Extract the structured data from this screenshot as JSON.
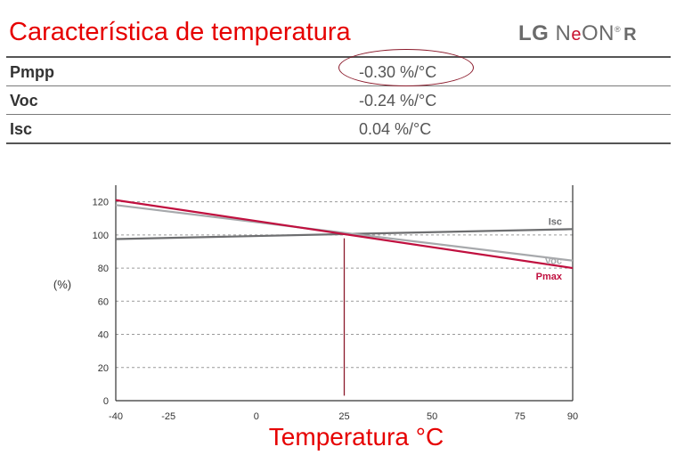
{
  "page": {
    "title": "Característica de temperatura",
    "brand": {
      "lg": "LG",
      "n": "N",
      "e": "e",
      "on": "ON",
      "reg": "®",
      "r": "R"
    }
  },
  "coefficients": [
    {
      "name": "Pmpp",
      "value": "-0.30 %/°C"
    },
    {
      "name": "Voc",
      "value": "-0.24 %/°C"
    },
    {
      "name": "Isc",
      "value": "0.04 %/°C"
    }
  ],
  "chart_data": {
    "type": "line",
    "xlabel": "Temperatura °C",
    "ylabel": "(%)",
    "xlim": [
      -40,
      90
    ],
    "ylim": [
      0,
      130
    ],
    "x_ticks": [
      -40,
      -25,
      0,
      25,
      50,
      75,
      90
    ],
    "y_ticks": [
      0,
      20,
      40,
      60,
      80,
      100,
      120
    ],
    "grid": "horizontal-dashed",
    "reference_line": {
      "x": 25,
      "from_y": 3,
      "to_y": 98,
      "color": "#8b1a2b"
    },
    "series": [
      {
        "name": "Isc",
        "color": "#6d6e70",
        "x": [
          -40,
          90
        ],
        "y": [
          97.5,
          103.5
        ]
      },
      {
        "name": "Voc",
        "color": "#a7a9ac",
        "x": [
          -40,
          90
        ],
        "y": [
          118,
          84.5
        ]
      },
      {
        "name": "Pmax",
        "color": "#c0103f",
        "x": [
          -40,
          90
        ],
        "y": [
          121,
          80
        ]
      }
    ]
  }
}
